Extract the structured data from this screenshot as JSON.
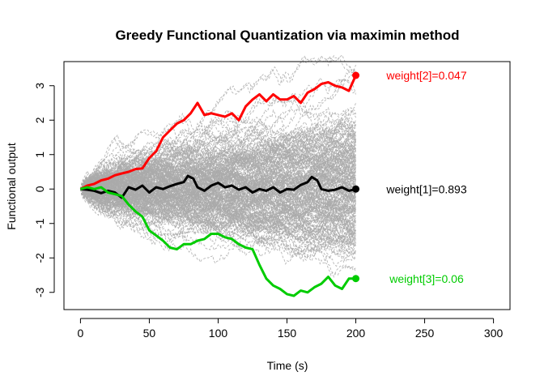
{
  "chart_data": {
    "type": "line",
    "title": "Greedy Functional Quantization via maximin method",
    "xlabel": "Time (s)",
    "ylabel": "Functional output",
    "xlim": [
      -12,
      312
    ],
    "ylim": [
      -3.5,
      3.7
    ],
    "xticks": [
      0,
      50,
      100,
      150,
      200,
      250,
      300
    ],
    "yticks": [
      -3,
      -2,
      -1,
      0,
      1,
      2,
      3
    ],
    "background_series": {
      "name": "simulated trajectories",
      "count": 220,
      "n_steps": 200,
      "color": "#aaaaaa",
      "line_style": "dashed"
    },
    "series": [
      {
        "name": "weight[1]",
        "label": "weight[1]=0.893",
        "color": "#000000",
        "x": [
          0,
          5,
          10,
          15,
          20,
          25,
          30,
          35,
          40,
          45,
          50,
          55,
          60,
          65,
          70,
          75,
          78,
          82,
          85,
          90,
          95,
          100,
          105,
          110,
          115,
          120,
          125,
          130,
          135,
          140,
          145,
          150,
          155,
          160,
          165,
          168,
          172,
          175,
          180,
          185,
          190,
          195,
          200
        ],
        "values": [
          0,
          -0.02,
          -0.05,
          -0.12,
          -0.05,
          -0.1,
          -0.25,
          0.05,
          -0.02,
          0.1,
          -0.1,
          0.05,
          0.0,
          0.08,
          0.15,
          0.2,
          0.38,
          0.3,
          0.05,
          -0.05,
          0.1,
          0.18,
          0.05,
          0.1,
          -0.02,
          0.05,
          -0.1,
          0.0,
          -0.05,
          0.05,
          -0.1,
          0.0,
          -0.02,
          0.12,
          0.2,
          0.35,
          0.25,
          0.0,
          -0.05,
          -0.02,
          0.05,
          -0.05,
          0.0
        ]
      },
      {
        "name": "weight[2]",
        "label": "weight[2]=0.047",
        "color": "#ff0000",
        "x": [
          0,
          5,
          10,
          15,
          20,
          25,
          30,
          35,
          40,
          45,
          50,
          55,
          60,
          65,
          70,
          75,
          80,
          85,
          90,
          95,
          100,
          105,
          110,
          115,
          120,
          125,
          130,
          135,
          140,
          145,
          150,
          155,
          160,
          165,
          170,
          175,
          180,
          185,
          190,
          195,
          200
        ],
        "values": [
          0,
          0.1,
          0.15,
          0.25,
          0.3,
          0.4,
          0.45,
          0.5,
          0.58,
          0.6,
          0.9,
          1.1,
          1.5,
          1.7,
          1.9,
          2.0,
          2.2,
          2.5,
          2.15,
          2.2,
          2.15,
          2.1,
          2.2,
          2.0,
          2.4,
          2.6,
          2.75,
          2.55,
          2.75,
          2.6,
          2.6,
          2.7,
          2.5,
          2.8,
          2.9,
          3.05,
          3.1,
          3.0,
          2.95,
          2.85,
          3.3
        ]
      },
      {
        "name": "weight[3]",
        "label": "weight[3]=0.06",
        "color": "#00cc00",
        "x": [
          0,
          5,
          10,
          15,
          20,
          25,
          30,
          35,
          40,
          45,
          50,
          55,
          60,
          65,
          70,
          75,
          80,
          85,
          90,
          95,
          100,
          105,
          110,
          115,
          120,
          125,
          130,
          135,
          140,
          145,
          150,
          155,
          160,
          165,
          170,
          175,
          180,
          185,
          190,
          195,
          200
        ],
        "values": [
          0,
          0.05,
          0.0,
          0.05,
          -0.1,
          -0.15,
          -0.2,
          -0.45,
          -0.65,
          -0.8,
          -1.2,
          -1.35,
          -1.5,
          -1.7,
          -1.75,
          -1.6,
          -1.6,
          -1.5,
          -1.45,
          -1.3,
          -1.3,
          -1.4,
          -1.45,
          -1.6,
          -1.7,
          -1.75,
          -2.2,
          -2.6,
          -2.8,
          -2.9,
          -3.05,
          -3.1,
          -2.95,
          -3.0,
          -2.85,
          -2.75,
          -2.55,
          -2.8,
          -2.9,
          -2.6,
          -2.6
        ]
      }
    ]
  }
}
